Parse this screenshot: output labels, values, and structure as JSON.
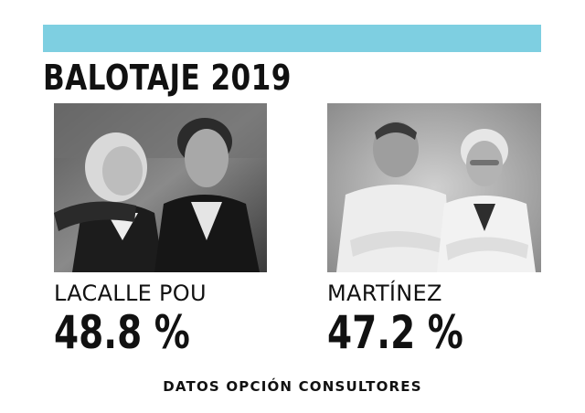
{
  "header": {
    "accent_color": "#7ecfe1",
    "title": "BALOTAJE 2019"
  },
  "candidates": [
    {
      "name": "LACALLE POU",
      "percent": "48.8 %",
      "photo_style": "black-and-white"
    },
    {
      "name": "MARTÍNEZ",
      "percent": "47.2 %",
      "photo_style": "black-and-white"
    }
  ],
  "footer": {
    "source": "DATOS OPCIÓN CONSULTORES"
  }
}
